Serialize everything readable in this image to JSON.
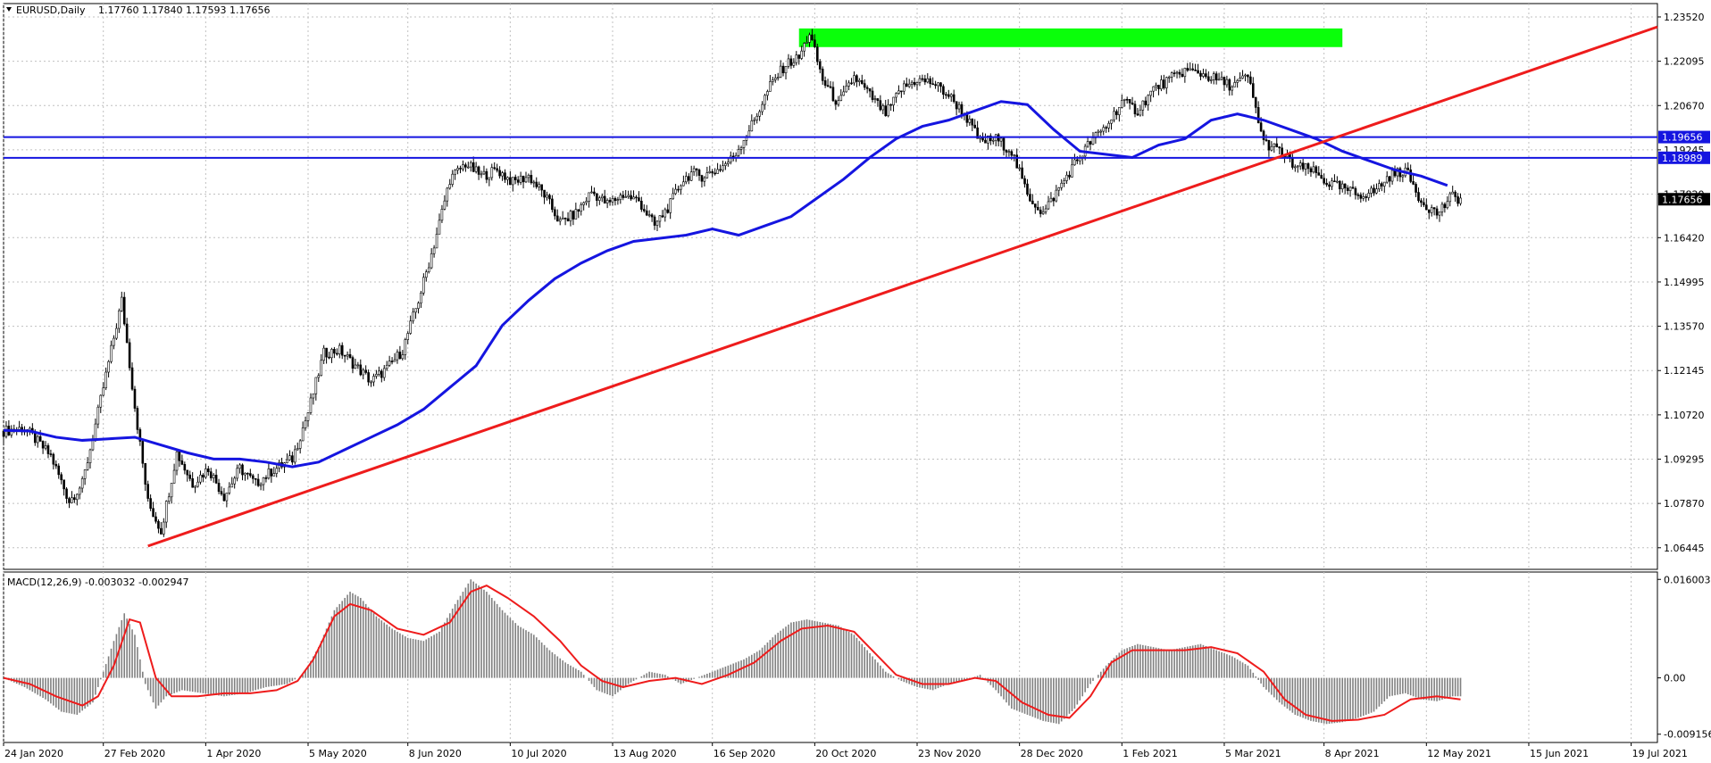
{
  "colors": {
    "background": "#ffffff",
    "grid": "#c0c0c0",
    "candle": "#000000",
    "moving_average": "#1515e0",
    "trendline": "#ee1c1c",
    "resistance_zone": "#0aff0a",
    "horizontal_levels": "#1515e0",
    "macd_histogram": "#808080",
    "macd_signal": "#ee1c1c",
    "price_tag_bg": "#000000",
    "level_tag_bg": "#1515e0"
  },
  "header": {
    "symbol": "EURUSD,Daily",
    "ohlc": "1.17760 1.17840 1.17593 1.17656"
  },
  "macd_header": "MACD(12,26,9) -0.003032 -0.002947",
  "chart_data": [
    {
      "type": "candlestick",
      "title": "EURUSD,Daily",
      "ylim": [
        1.0575,
        1.2395
      ],
      "y_ticks": [
        "1.23520",
        "1.22095",
        "1.20670",
        "1.19245",
        "1.17820",
        "1.16420",
        "1.14995",
        "1.13570",
        "1.12145",
        "1.10720",
        "1.09295",
        "1.07870",
        "1.06445"
      ],
      "x_ticks": [
        "24 Jan 2020",
        "27 Feb 2020",
        "1 Apr 2020",
        "5 May 2020",
        "8 Jun 2020",
        "10 Jul 2020",
        "13 Aug 2020",
        "16 Sep 2020",
        "20 Oct 2020",
        "23 Nov 2020",
        "28 Dec 2020",
        "1 Feb 2021",
        "5 Mar 2021",
        "8 Apr 2021",
        "12 May 2021",
        "15 Jun 2021",
        "19 Jul 2021"
      ],
      "grid": true,
      "price_path": [
        [
          0,
          1.102
        ],
        [
          8,
          1.103
        ],
        [
          18,
          1.094
        ],
        [
          25,
          1.0795
        ],
        [
          30,
          1.085
        ],
        [
          34,
          1.1
        ],
        [
          40,
          1.124
        ],
        [
          45,
          1.144
        ],
        [
          50,
          1.11
        ],
        [
          55,
          1.079
        ],
        [
          60,
          1.07
        ],
        [
          66,
          1.095
        ],
        [
          72,
          1.085
        ],
        [
          78,
          1.09
        ],
        [
          84,
          1.081
        ],
        [
          90,
          1.09
        ],
        [
          96,
          1.085
        ],
        [
          102,
          1.089
        ],
        [
          110,
          1.093
        ],
        [
          116,
          1.108
        ],
        [
          122,
          1.127
        ],
        [
          128,
          1.128
        ],
        [
          134,
          1.123
        ],
        [
          140,
          1.118
        ],
        [
          146,
          1.122
        ],
        [
          152,
          1.128
        ],
        [
          158,
          1.144
        ],
        [
          164,
          1.162
        ],
        [
          170,
          1.183
        ],
        [
          176,
          1.188
        ],
        [
          182,
          1.184
        ],
        [
          188,
          1.186
        ],
        [
          194,
          1.182
        ],
        [
          200,
          1.184
        ],
        [
          206,
          1.178
        ],
        [
          212,
          1.169
        ],
        [
          218,
          1.172
        ],
        [
          224,
          1.179
        ],
        [
          230,
          1.175
        ],
        [
          236,
          1.178
        ],
        [
          242,
          1.176
        ],
        [
          248,
          1.168
        ],
        [
          254,
          1.175
        ],
        [
          258,
          1.182
        ],
        [
          262,
          1.185
        ],
        [
          266,
          1.184
        ],
        [
          272,
          1.186
        ],
        [
          278,
          1.19
        ],
        [
          286,
          1.202
        ],
        [
          292,
          1.213
        ],
        [
          298,
          1.22
        ],
        [
          303,
          1.222
        ],
        [
          307,
          1.23
        ],
        [
          312,
          1.215
        ],
        [
          318,
          1.207
        ],
        [
          324,
          1.216
        ],
        [
          330,
          1.21
        ],
        [
          336,
          1.204
        ],
        [
          342,
          1.212
        ],
        [
          348,
          1.215
        ],
        [
          354,
          1.214
        ],
        [
          360,
          1.21
        ],
        [
          366,
          1.204
        ],
        [
          372,
          1.195
        ],
        [
          378,
          1.196
        ],
        [
          384,
          1.192
        ],
        [
          390,
          1.178
        ],
        [
          396,
          1.172
        ],
        [
          402,
          1.18
        ],
        [
          408,
          1.188
        ],
        [
          414,
          1.195
        ],
        [
          420,
          1.2
        ],
        [
          426,
          1.208
        ],
        [
          432,
          1.205
        ],
        [
          438,
          1.212
        ],
        [
          444,
          1.215
        ],
        [
          450,
          1.218
        ],
        [
          456,
          1.217
        ],
        [
          462,
          1.215
        ],
        [
          468,
          1.213
        ],
        [
          474,
          1.216
        ],
        [
          480,
          1.195
        ],
        [
          486,
          1.192
        ],
        [
          492,
          1.187
        ],
        [
          498,
          1.186
        ],
        [
          504,
          1.182
        ],
        [
          510,
          1.18
        ],
        [
          516,
          1.178
        ],
        [
          522,
          1.179
        ],
        [
          528,
          1.184
        ],
        [
          534,
          1.186
        ],
        [
          540,
          1.176
        ],
        [
          546,
          1.172
        ],
        [
          552,
          1.1775
        ],
        [
          555,
          1.1766
        ]
      ],
      "moving_average_path": [
        [
          0,
          1.1022
        ],
        [
          10,
          1.102
        ],
        [
          20,
          1.1
        ],
        [
          30,
          1.099
        ],
        [
          40,
          1.0995
        ],
        [
          50,
          1.1
        ],
        [
          60,
          1.0975
        ],
        [
          70,
          1.095
        ],
        [
          80,
          1.093
        ],
        [
          90,
          1.093
        ],
        [
          100,
          1.092
        ],
        [
          110,
          1.0905
        ],
        [
          120,
          1.092
        ],
        [
          130,
          1.096
        ],
        [
          140,
          1.1
        ],
        [
          150,
          1.104
        ],
        [
          160,
          1.109
        ],
        [
          170,
          1.116
        ],
        [
          180,
          1.123
        ],
        [
          190,
          1.136
        ],
        [
          200,
          1.144
        ],
        [
          210,
          1.151
        ],
        [
          220,
          1.156
        ],
        [
          230,
          1.16
        ],
        [
          240,
          1.163
        ],
        [
          250,
          1.164
        ],
        [
          260,
          1.165
        ],
        [
          270,
          1.167
        ],
        [
          280,
          1.165
        ],
        [
          290,
          1.168
        ],
        [
          300,
          1.171
        ],
        [
          310,
          1.177
        ],
        [
          320,
          1.183
        ],
        [
          330,
          1.19
        ],
        [
          340,
          1.196
        ],
        [
          350,
          1.2
        ],
        [
          360,
          1.202
        ],
        [
          370,
          1.205
        ],
        [
          380,
          1.208
        ],
        [
          390,
          1.207
        ],
        [
          400,
          1.199
        ],
        [
          410,
          1.192
        ],
        [
          420,
          1.191
        ],
        [
          430,
          1.19
        ],
        [
          440,
          1.194
        ],
        [
          450,
          1.196
        ],
        [
          460,
          1.202
        ],
        [
          470,
          1.204
        ],
        [
          480,
          1.202
        ],
        [
          490,
          1.199
        ],
        [
          500,
          1.196
        ],
        [
          510,
          1.192
        ],
        [
          520,
          1.189
        ],
        [
          530,
          1.186
        ],
        [
          540,
          1.184
        ],
        [
          550,
          1.181
        ]
      ],
      "trendline": [
        [
          55,
          1.065
        ],
        [
          630,
          1.232
        ]
      ],
      "resistance_zone": {
        "x_from": 303,
        "x_to": 510,
        "y_from": 1.2255,
        "y_to": 1.2315
      },
      "horizontal_levels": [
        {
          "label": "1.19656",
          "value": 1.19656
        },
        {
          "label": "1.18989",
          "value": 1.18989
        }
      ],
      "current_price_label": "1.17656",
      "current_price": 1.17656
    },
    {
      "type": "bar",
      "title": "MACD(12,26,9) -0.003032 -0.002947",
      "ylim": [
        -0.0105,
        0.0172
      ],
      "y_ticks": [
        "0.016003",
        "0.00",
        "-0.009156"
      ],
      "histogram_path": [
        [
          0,
          0.0
        ],
        [
          8,
          -0.0015
        ],
        [
          16,
          -0.0035
        ],
        [
          22,
          -0.0055
        ],
        [
          28,
          -0.006
        ],
        [
          34,
          -0.004
        ],
        [
          38,
          0.001
        ],
        [
          42,
          0.006
        ],
        [
          46,
          0.0105
        ],
        [
          50,
          0.007
        ],
        [
          54,
          -0.001
        ],
        [
          58,
          -0.005
        ],
        [
          62,
          -0.003
        ],
        [
          68,
          -0.002
        ],
        [
          76,
          -0.0025
        ],
        [
          84,
          -0.003
        ],
        [
          92,
          -0.0025
        ],
        [
          100,
          -0.0015
        ],
        [
          108,
          -0.001
        ],
        [
          114,
          0.0005
        ],
        [
          120,
          0.005
        ],
        [
          126,
          0.011
        ],
        [
          132,
          0.014
        ],
        [
          136,
          0.013
        ],
        [
          142,
          0.01
        ],
        [
          148,
          0.008
        ],
        [
          154,
          0.0065
        ],
        [
          160,
          0.006
        ],
        [
          166,
          0.0075
        ],
        [
          172,
          0.012
        ],
        [
          178,
          0.016
        ],
        [
          184,
          0.014
        ],
        [
          190,
          0.011
        ],
        [
          196,
          0.0085
        ],
        [
          202,
          0.007
        ],
        [
          208,
          0.0045
        ],
        [
          214,
          0.0025
        ],
        [
          220,
          0.001
        ],
        [
          226,
          -0.002
        ],
        [
          232,
          -0.003
        ],
        [
          238,
          -0.001
        ],
        [
          246,
          0.001
        ],
        [
          252,
          0.0005
        ],
        [
          258,
          -0.001
        ],
        [
          264,
          0.0
        ],
        [
          270,
          0.001
        ],
        [
          276,
          0.002
        ],
        [
          282,
          0.003
        ],
        [
          288,
          0.0045
        ],
        [
          294,
          0.007
        ],
        [
          300,
          0.009
        ],
        [
          306,
          0.0095
        ],
        [
          312,
          0.009
        ],
        [
          318,
          0.0085
        ],
        [
          324,
          0.007
        ],
        [
          330,
          0.004
        ],
        [
          336,
          0.001
        ],
        [
          342,
          -0.0005
        ],
        [
          348,
          -0.0015
        ],
        [
          354,
          -0.002
        ],
        [
          360,
          -0.001
        ],
        [
          366,
          -0.0005
        ],
        [
          372,
          0.0005
        ],
        [
          378,
          -0.002
        ],
        [
          384,
          -0.005
        ],
        [
          390,
          -0.006
        ],
        [
          396,
          -0.007
        ],
        [
          402,
          -0.0075
        ],
        [
          408,
          -0.005
        ],
        [
          414,
          -0.001
        ],
        [
          420,
          0.002
        ],
        [
          426,
          0.0045
        ],
        [
          432,
          0.0055
        ],
        [
          438,
          0.005
        ],
        [
          444,
          0.0045
        ],
        [
          450,
          0.005
        ],
        [
          456,
          0.0055
        ],
        [
          462,
          0.0045
        ],
        [
          468,
          0.0035
        ],
        [
          474,
          0.002
        ],
        [
          480,
          -0.0015
        ],
        [
          486,
          -0.004
        ],
        [
          492,
          -0.006
        ],
        [
          498,
          -0.007
        ],
        [
          504,
          -0.0075
        ],
        [
          510,
          -0.0072
        ],
        [
          516,
          -0.0065
        ],
        [
          522,
          -0.0055
        ],
        [
          528,
          -0.003
        ],
        [
          534,
          -0.0025
        ],
        [
          540,
          -0.0035
        ],
        [
          546,
          -0.0038
        ],
        [
          552,
          -0.003
        ],
        [
          555,
          -0.003
        ]
      ],
      "signal_path": [
        [
          0,
          0.0
        ],
        [
          10,
          -0.001
        ],
        [
          20,
          -0.003
        ],
        [
          30,
          -0.0045
        ],
        [
          36,
          -0.003
        ],
        [
          42,
          0.002
        ],
        [
          48,
          0.0095
        ],
        [
          52,
          0.009
        ],
        [
          58,
          0.0
        ],
        [
          64,
          -0.003
        ],
        [
          74,
          -0.003
        ],
        [
          84,
          -0.0025
        ],
        [
          94,
          -0.0025
        ],
        [
          104,
          -0.002
        ],
        [
          112,
          -0.0005
        ],
        [
          118,
          0.003
        ],
        [
          126,
          0.01
        ],
        [
          132,
          0.012
        ],
        [
          140,
          0.011
        ],
        [
          150,
          0.008
        ],
        [
          160,
          0.007
        ],
        [
          170,
          0.009
        ],
        [
          178,
          0.014
        ],
        [
          184,
          0.015
        ],
        [
          192,
          0.013
        ],
        [
          202,
          0.01
        ],
        [
          212,
          0.006
        ],
        [
          220,
          0.002
        ],
        [
          228,
          -0.0005
        ],
        [
          236,
          -0.0015
        ],
        [
          246,
          -0.0005
        ],
        [
          256,
          0.0
        ],
        [
          266,
          -0.001
        ],
        [
          276,
          0.0005
        ],
        [
          286,
          0.0025
        ],
        [
          296,
          0.006
        ],
        [
          304,
          0.008
        ],
        [
          314,
          0.0085
        ],
        [
          324,
          0.0075
        ],
        [
          332,
          0.004
        ],
        [
          340,
          0.0005
        ],
        [
          350,
          -0.001
        ],
        [
          360,
          -0.001
        ],
        [
          370,
          0.0
        ],
        [
          378,
          -0.0005
        ],
        [
          388,
          -0.004
        ],
        [
          398,
          -0.006
        ],
        [
          406,
          -0.0065
        ],
        [
          414,
          -0.003
        ],
        [
          422,
          0.0025
        ],
        [
          430,
          0.0045
        ],
        [
          440,
          0.0045
        ],
        [
          450,
          0.0045
        ],
        [
          460,
          0.005
        ],
        [
          470,
          0.004
        ],
        [
          480,
          0.001
        ],
        [
          488,
          -0.0035
        ],
        [
          496,
          -0.006
        ],
        [
          506,
          -0.007
        ],
        [
          516,
          -0.0068
        ],
        [
          526,
          -0.006
        ],
        [
          536,
          -0.0035
        ],
        [
          546,
          -0.003
        ],
        [
          555,
          -0.0035
        ]
      ]
    }
  ]
}
